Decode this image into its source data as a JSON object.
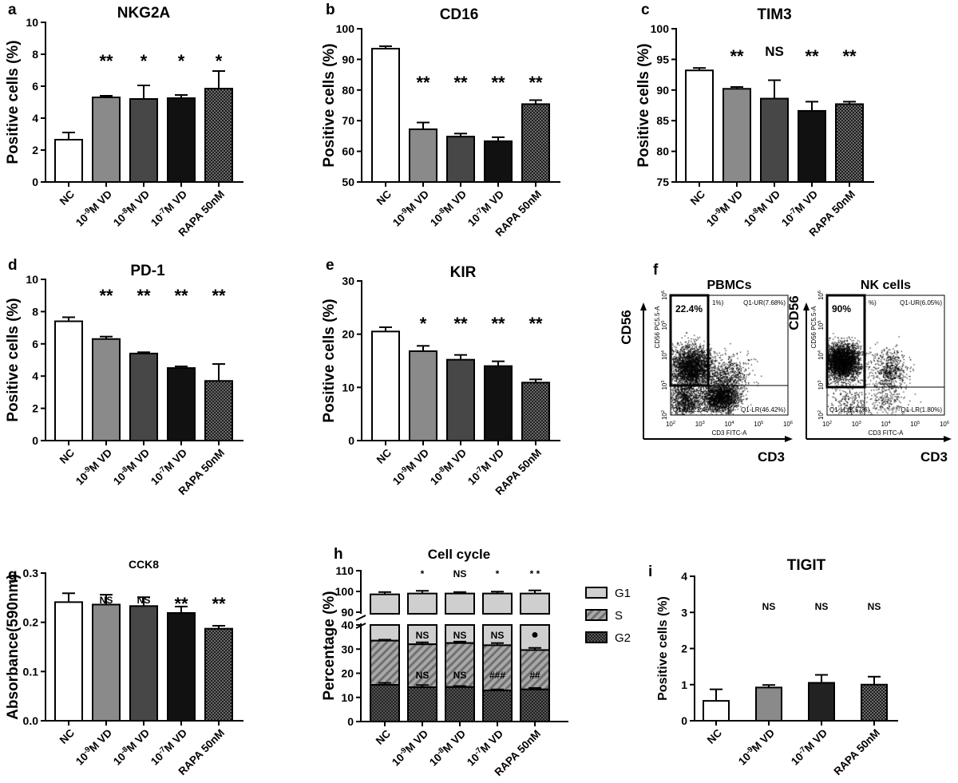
{
  "colors": {
    "bar_fills": [
      "#ffffff",
      "#8a8a8a",
      "#474747",
      "#111111",
      "hatch"
    ],
    "tigit_fills": [
      "#ffffff",
      "#8a8a8a",
      "#222222",
      "hatch"
    ],
    "cell_cycle": {
      "G1": "#cfcfcf",
      "S": "stripes",
      "G2": "checker"
    }
  },
  "chart_data": [
    {
      "letter": "a",
      "type": "bar",
      "title": "NKG2A",
      "ylabel": "Positive cells  (%)",
      "ylim": [
        0,
        10
      ],
      "yticks": [
        0,
        2,
        4,
        6,
        8,
        10
      ],
      "categories": [
        "NC",
        {
          "base": "10",
          "sup": "-9",
          "rest": "M VD"
        },
        {
          "base": "10",
          "sup": "-8",
          "rest": "M VD"
        },
        {
          "base": "10",
          "sup": "-7",
          "rest": "M VD"
        },
        "RAPA 50nM"
      ],
      "values": [
        2.65,
        5.3,
        5.2,
        5.25,
        5.85
      ],
      "errors": [
        0.45,
        0.1,
        0.85,
        0.2,
        1.1
      ],
      "significance": [
        "",
        "**",
        "*",
        "*",
        "*"
      ]
    },
    {
      "letter": "b",
      "type": "bar",
      "title": "CD16",
      "ylabel": "Positive cells  (%)",
      "ylim": [
        50,
        100
      ],
      "yticks": [
        50,
        60,
        70,
        80,
        90,
        100
      ],
      "categories": [
        "NC",
        {
          "base": "10",
          "sup": "-9",
          "rest": "M VD"
        },
        {
          "base": "10",
          "sup": "-8",
          "rest": "M VD"
        },
        {
          "base": "10",
          "sup": "-7",
          "rest": "M VD"
        },
        "RAPA 50nM"
      ],
      "values": [
        93.5,
        67.2,
        64.8,
        63.3,
        75.4
      ],
      "errors": [
        0.8,
        2.2,
        1.0,
        1.3,
        1.3
      ],
      "significance": [
        "",
        "**",
        "**",
        "**",
        "**"
      ]
    },
    {
      "letter": "c",
      "type": "bar",
      "title": "TIM3",
      "ylabel": "Positive cells  (%)",
      "ylim": [
        75,
        100
      ],
      "yticks": [
        75,
        80,
        85,
        90,
        95,
        100
      ],
      "categories": [
        "NC",
        {
          "base": "10",
          "sup": "-9",
          "rest": "M VD"
        },
        {
          "base": "10",
          "sup": "-8",
          "rest": "M VD"
        },
        {
          "base": "10",
          "sup": "-7",
          "rest": "M VD"
        },
        "RAPA 50nM"
      ],
      "values": [
        93.2,
        90.2,
        88.6,
        86.6,
        87.7
      ],
      "errors": [
        0.4,
        0.3,
        3.0,
        1.5,
        0.4
      ],
      "significance": [
        "",
        "**",
        "NS",
        "**",
        "**"
      ]
    },
    {
      "letter": "d",
      "type": "bar",
      "title": "PD-1",
      "ylabel": "Positive cells  (%)",
      "ylim": [
        0,
        10
      ],
      "yticks": [
        0,
        2,
        4,
        6,
        8,
        10
      ],
      "categories": [
        "NC",
        {
          "base": "10",
          "sup": "-9",
          "rest": "M VD"
        },
        {
          "base": "10",
          "sup": "-8",
          "rest": "M VD"
        },
        {
          "base": "10",
          "sup": "-7",
          "rest": "M VD"
        },
        "RAPA 50nM"
      ],
      "values": [
        7.4,
        6.3,
        5.4,
        4.5,
        3.7
      ],
      "errors": [
        0.25,
        0.15,
        0.08,
        0.1,
        1.05
      ],
      "significance": [
        "",
        "**",
        "**",
        "**",
        "**"
      ]
    },
    {
      "letter": "e",
      "type": "bar",
      "title": "KIR",
      "ylabel": "Positive cells  (%)",
      "ylim": [
        0,
        30
      ],
      "yticks": [
        0,
        10,
        20,
        30
      ],
      "categories": [
        "NC",
        {
          "base": "10",
          "sup": "-9",
          "rest": "M VD"
        },
        {
          "base": "10",
          "sup": "-8",
          "rest": "M VD"
        },
        {
          "base": "10",
          "sup": "-7",
          "rest": "M VD"
        },
        "RAPA 50nM"
      ],
      "values": [
        20.5,
        16.8,
        15.2,
        14.0,
        10.9
      ],
      "errors": [
        0.8,
        1.0,
        0.9,
        0.9,
        0.6
      ],
      "significance": [
        "",
        "*",
        "**",
        "**",
        "**"
      ]
    },
    {
      "letter": "f",
      "type": "scatter",
      "xlabel": "CD3",
      "ylabel": "CD56",
      "plots": [
        {
          "title": "PBMCs",
          "gate_pct": "22.4%",
          "ul_fragment": "1%)",
          "x_axis": "CD3 FITC-A",
          "y_axis": "CD56 PC5.5-A",
          "q_ur": "Q1-UR(7.68%)",
          "q_ll": "Q1-LL(23.49%)",
          "q_lr": "Q1-LR(46.42%)"
        },
        {
          "title": "NK  cells",
          "gate_pct": "90%",
          "ul_fragment": "%)",
          "x_axis": "CD3 FITC-A",
          "y_axis": "CD56 PC5.5-A",
          "q_ur": "Q1-UR(6.05%)",
          "q_ll": "Q1-LL(2.17%)",
          "q_lr": "Q1-LR(1.80%)"
        }
      ],
      "ticks": [
        {
          "base": "10",
          "sup": "2"
        },
        {
          "base": "10",
          "sup": "3"
        },
        {
          "base": "10",
          "sup": "4"
        },
        {
          "base": "10",
          "sup": "5"
        },
        {
          "base": "10",
          "sup": "6"
        }
      ]
    },
    {
      "letter": "g",
      "type": "bar",
      "title": "CCK8",
      "ylabel": "Absorbance(590nm)",
      "ylim": [
        0,
        0.3
      ],
      "yticks": [
        "0.0",
        "0.1",
        "0.2",
        "0.3"
      ],
      "categories": [
        "NC",
        {
          "base": "10",
          "sup": "-9",
          "rest": "M VD"
        },
        {
          "base": "10",
          "sup": "-8",
          "rest": "M VD"
        },
        {
          "base": "10",
          "sup": "-7",
          "rest": "M VD"
        },
        "RAPA 50nM"
      ],
      "values": [
        0.241,
        0.236,
        0.233,
        0.219,
        0.187
      ],
      "errors": [
        0.018,
        0.02,
        0.018,
        0.013,
        0.006
      ],
      "significance": [
        "",
        "NS",
        "NS",
        "**",
        "**"
      ]
    },
    {
      "letter": "h",
      "type": "stacked-bar",
      "title": "Cell cycle",
      "ylabel": "Percentage (%)",
      "axis_break": [
        40,
        90
      ],
      "yticks_lower": [
        0,
        10,
        20,
        30,
        40
      ],
      "yticks_upper": [
        90,
        100,
        110
      ],
      "categories": [
        "NC",
        {
          "base": "10",
          "sup": "-9",
          "rest": "M VD"
        },
        {
          "base": "10",
          "sup": "-8",
          "rest": "M VD"
        },
        {
          "base": "10",
          "sup": "-7",
          "rest": "M VD"
        },
        "RAPA 50nM"
      ],
      "series": [
        {
          "name": "G2",
          "values": [
            15.2,
            14.2,
            14.3,
            12.9,
            13.3
          ],
          "errors": [
            0.8,
            0.9,
            0.4,
            0.4,
            0.6
          ],
          "significance": [
            "",
            "",
            "",
            "",
            ""
          ]
        },
        {
          "name": "S",
          "values": [
            18.3,
            17.8,
            18.2,
            18.7,
            16.3
          ],
          "errors": [
            0.4,
            0.8,
            0.6,
            0.9,
            0.9
          ],
          "significance": [
            "",
            "NS",
            "NS",
            "###",
            "##"
          ]
        },
        {
          "name": "G1",
          "values": [
            65.1,
            67.0,
            66.5,
            67.4,
            69.4
          ],
          "errors": [
            1.1,
            1.3,
            0.7,
            0.9,
            1.5
          ],
          "significance": [
            "",
            "NS",
            "NS",
            "NS",
            "●"
          ]
        }
      ],
      "top_significance": [
        "",
        "*",
        "NS",
        "*",
        "* *"
      ],
      "legend": [
        "G1",
        "S",
        "G2"
      ],
      "legend_placement": "right"
    },
    {
      "letter": "i",
      "type": "bar",
      "title": "TIGIT",
      "ylabel": "Positive cells (%)",
      "ylim": [
        0,
        4
      ],
      "yticks": [
        0,
        1,
        2,
        3,
        4
      ],
      "categories": [
        "NC",
        {
          "base": "10",
          "sup": "-9",
          "rest": "M VD"
        },
        {
          "base": "10",
          "sup": "-7",
          "rest": "M VD"
        },
        "RAPA 50nM"
      ],
      "values": [
        0.55,
        0.92,
        1.05,
        1.0
      ],
      "errors": [
        0.32,
        0.07,
        0.22,
        0.22
      ],
      "significance": [
        "",
        "NS",
        "NS",
        "NS"
      ]
    }
  ]
}
